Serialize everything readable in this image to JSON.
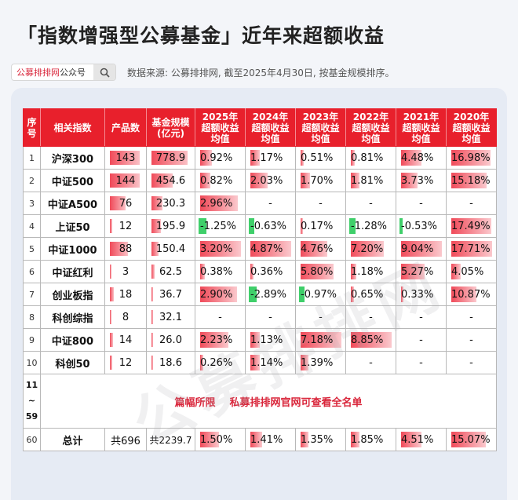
{
  "title": "「指数增强型公募基金」近年来超额收益",
  "search": {
    "brand": "公募排排网",
    "suffix": "公众号"
  },
  "source": "数据来源: 公募排排网, 截至2025年4月30日, 按基金规模排序。",
  "watermark": "公募排排网",
  "colors": {
    "header": "#e8202c",
    "pos_bar": "#f04a59",
    "neg_bar": "#3fcf6a",
    "notice": "#d9253a"
  },
  "headers": [
    [
      "序",
      "号"
    ],
    [
      "相关指数"
    ],
    [
      "产品数"
    ],
    [
      "基金规模",
      "(亿元)"
    ],
    [
      "2025年",
      "超额收益",
      "均值"
    ],
    [
      "2024年",
      "超额收益",
      "均值"
    ],
    [
      "2023年",
      "超额收益",
      "均值"
    ],
    [
      "2022年",
      "超额收益",
      "均值"
    ],
    [
      "2021年",
      "超额收益",
      "均值"
    ],
    [
      "2020年",
      "超额收益",
      "均值"
    ]
  ],
  "rows": [
    {
      "seq": "1",
      "index": "沪深300",
      "count": "143",
      "count_v": 143,
      "scale": "778.9",
      "scale_v": 778.9,
      "ret": [
        "0.92%",
        "1.17%",
        "0.51%",
        "0.81%",
        "4.48%",
        "16.98%"
      ],
      "ret_v": [
        0.92,
        1.17,
        0.51,
        0.81,
        4.48,
        16.98
      ]
    },
    {
      "seq": "2",
      "index": "中证500",
      "count": "144",
      "count_v": 144,
      "scale": "454.6",
      "scale_v": 454.6,
      "ret": [
        "0.82%",
        "2.03%",
        "1.70%",
        "1.81%",
        "3.73%",
        "15.18%"
      ],
      "ret_v": [
        0.82,
        2.03,
        1.7,
        1.81,
        3.73,
        15.18
      ]
    },
    {
      "seq": "3",
      "index": "中证A500",
      "count": "76",
      "count_v": 76,
      "scale": "230.3",
      "scale_v": 230.3,
      "ret": [
        "2.96%",
        "-",
        "-",
        "-",
        "-",
        "-"
      ],
      "ret_v": [
        2.96,
        null,
        null,
        null,
        null,
        null
      ]
    },
    {
      "seq": "4",
      "index": "上证50",
      "count": "12",
      "count_v": 12,
      "scale": "195.9",
      "scale_v": 195.9,
      "ret": [
        "-1.25%",
        "-0.63%",
        "0.17%",
        "-1.28%",
        "-0.53%",
        "17.49%"
      ],
      "ret_v": [
        -1.25,
        -0.63,
        0.17,
        -1.28,
        -0.53,
        17.49
      ]
    },
    {
      "seq": "5",
      "index": "中证1000",
      "count": "88",
      "count_v": 88,
      "scale": "150.4",
      "scale_v": 150.4,
      "ret": [
        "3.20%",
        "4.87%",
        "4.76%",
        "7.20%",
        "9.04%",
        "17.71%"
      ],
      "ret_v": [
        3.2,
        4.87,
        4.76,
        7.2,
        9.04,
        17.71
      ]
    },
    {
      "seq": "6",
      "index": "中证红利",
      "count": "3",
      "count_v": 3,
      "scale": "62.5",
      "scale_v": 62.5,
      "ret": [
        "0.38%",
        "0.36%",
        "5.80%",
        "1.18%",
        "5.27%",
        "4.05%"
      ],
      "ret_v": [
        0.38,
        0.36,
        5.8,
        1.18,
        5.27,
        4.05
      ]
    },
    {
      "seq": "7",
      "index": "创业板指",
      "count": "18",
      "count_v": 18,
      "scale": "36.7",
      "scale_v": 36.7,
      "ret": [
        "2.90%",
        "-2.89%",
        "-0.97%",
        "0.65%",
        "0.33%",
        "10.87%"
      ],
      "ret_v": [
        2.9,
        -2.89,
        -0.97,
        0.65,
        0.33,
        10.87
      ]
    },
    {
      "seq": "8",
      "index": "科创综指",
      "count": "8",
      "count_v": 8,
      "scale": "32.1",
      "scale_v": 32.1,
      "ret": [
        "-",
        "-",
        "-",
        "-",
        "-",
        "-"
      ],
      "ret_v": [
        null,
        null,
        null,
        null,
        null,
        null
      ]
    },
    {
      "seq": "9",
      "index": "中证800",
      "count": "14",
      "count_v": 14,
      "scale": "26.0",
      "scale_v": 26.0,
      "ret": [
        "2.23%",
        "1.13%",
        "7.18%",
        "8.85%",
        "-",
        "-"
      ],
      "ret_v": [
        2.23,
        1.13,
        7.18,
        8.85,
        null,
        null
      ]
    },
    {
      "seq": "10",
      "index": "科创50",
      "count": "12",
      "count_v": 12,
      "scale": "18.6",
      "scale_v": 18.6,
      "ret": [
        "0.26%",
        "1.14%",
        "1.39%",
        "-",
        "-",
        "-"
      ],
      "ret_v": [
        0.26,
        1.14,
        1.39,
        null,
        null,
        null
      ]
    }
  ],
  "gap": {
    "seq": [
      "11",
      "~",
      "59"
    ],
    "notice": "篇幅所限    私募排排网官网可查看全名单"
  },
  "total": {
    "seq": "60",
    "label": "总计",
    "count": "共696",
    "scale": "共2239.7",
    "ret": [
      "1.50%",
      "1.41%",
      "1.35%",
      "1.85%",
      "4.51%",
      "15.07%"
    ],
    "ret_v": [
      1.5,
      1.41,
      1.35,
      1.85,
      4.51,
      15.07
    ]
  },
  "scale_max": {
    "count": 144,
    "scale": 778.9,
    "ret": [
      3.2,
      4.87,
      7.2,
      8.85,
      9.04,
      17.71
    ]
  }
}
